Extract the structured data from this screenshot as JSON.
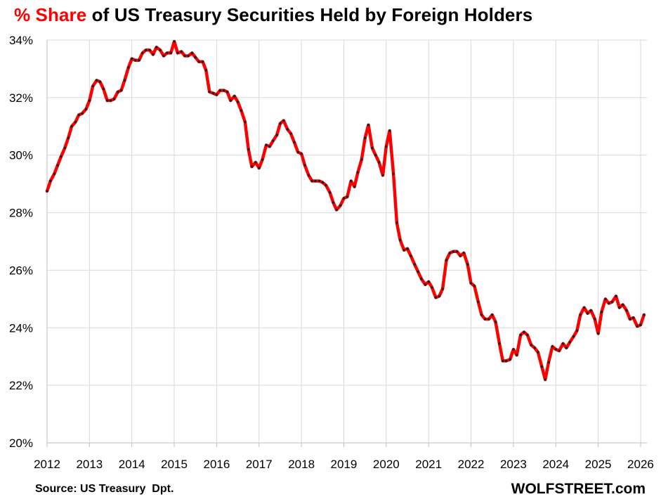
{
  "title": {
    "accent": "% Share",
    "rest": " of US Treasury Securities Held by Foreign Holders"
  },
  "source": "Source: US Treasury  Dpt.",
  "brand": "WOLFSTREET.com",
  "colors": {
    "line": "#ff0000",
    "marker": "#222222",
    "grid": "#d9d9d9",
    "axis": "#bfbfbf"
  },
  "chart_data": {
    "type": "line",
    "title": "% Share of US Treasury Securities Held by Foreign Holders",
    "xlabel": "",
    "ylabel": "",
    "xlim": [
      2012,
      2026.15
    ],
    "ylim": [
      20,
      34
    ],
    "yticks": [
      20,
      22,
      24,
      26,
      28,
      30,
      32,
      34
    ],
    "ytick_labels": [
      "20%",
      "22%",
      "24%",
      "26%",
      "28%",
      "30%",
      "32%",
      "34%"
    ],
    "xticks": [
      2012,
      2013,
      2014,
      2015,
      2016,
      2017,
      2018,
      2019,
      2020,
      2021,
      2022,
      2023,
      2024,
      2025,
      2026
    ],
    "xtick_labels": [
      "2012",
      "2013",
      "2014",
      "2015",
      "2016",
      "2017",
      "2018",
      "2019",
      "2020",
      "2021",
      "2022",
      "2023",
      "2024",
      "2025",
      "2026"
    ],
    "grid": true,
    "legend": "none",
    "series": [
      {
        "values": [
          [
            2012.0,
            28.75
          ],
          [
            2012.08,
            29.1
          ],
          [
            2012.17,
            29.35
          ],
          [
            2012.25,
            29.65
          ],
          [
            2012.33,
            29.95
          ],
          [
            2012.42,
            30.25
          ],
          [
            2012.5,
            30.6
          ],
          [
            2012.58,
            31.0
          ],
          [
            2012.67,
            31.15
          ],
          [
            2012.75,
            31.4
          ],
          [
            2012.83,
            31.45
          ],
          [
            2012.92,
            31.6
          ],
          [
            2013.0,
            31.9
          ],
          [
            2013.08,
            32.4
          ],
          [
            2013.17,
            32.6
          ],
          [
            2013.25,
            32.55
          ],
          [
            2013.33,
            32.3
          ],
          [
            2013.42,
            31.9
          ],
          [
            2013.5,
            31.9
          ],
          [
            2013.58,
            31.95
          ],
          [
            2013.67,
            32.2
          ],
          [
            2013.75,
            32.25
          ],
          [
            2013.83,
            32.6
          ],
          [
            2013.92,
            33.05
          ],
          [
            2014.0,
            33.35
          ],
          [
            2014.08,
            33.3
          ],
          [
            2014.17,
            33.3
          ],
          [
            2014.25,
            33.55
          ],
          [
            2014.33,
            33.65
          ],
          [
            2014.42,
            33.65
          ],
          [
            2014.5,
            33.5
          ],
          [
            2014.58,
            33.75
          ],
          [
            2014.67,
            33.65
          ],
          [
            2014.75,
            33.45
          ],
          [
            2014.83,
            33.55
          ],
          [
            2014.92,
            33.55
          ],
          [
            2015.0,
            33.95
          ],
          [
            2015.08,
            33.55
          ],
          [
            2015.17,
            33.6
          ],
          [
            2015.25,
            33.45
          ],
          [
            2015.33,
            33.45
          ],
          [
            2015.42,
            33.55
          ],
          [
            2015.5,
            33.4
          ],
          [
            2015.58,
            33.25
          ],
          [
            2015.67,
            33.25
          ],
          [
            2015.75,
            32.95
          ],
          [
            2015.83,
            32.2
          ],
          [
            2015.92,
            32.15
          ],
          [
            2016.0,
            32.1
          ],
          [
            2016.08,
            32.25
          ],
          [
            2016.17,
            32.25
          ],
          [
            2016.25,
            32.2
          ],
          [
            2016.33,
            31.9
          ],
          [
            2016.42,
            32.05
          ],
          [
            2016.5,
            31.85
          ],
          [
            2016.58,
            31.55
          ],
          [
            2016.67,
            31.15
          ],
          [
            2016.75,
            30.2
          ],
          [
            2016.83,
            29.6
          ],
          [
            2016.92,
            29.75
          ],
          [
            2017.0,
            29.55
          ],
          [
            2017.08,
            29.85
          ],
          [
            2017.17,
            30.35
          ],
          [
            2017.25,
            30.3
          ],
          [
            2017.33,
            30.5
          ],
          [
            2017.42,
            30.7
          ],
          [
            2017.5,
            31.1
          ],
          [
            2017.58,
            31.2
          ],
          [
            2017.67,
            30.9
          ],
          [
            2017.75,
            30.75
          ],
          [
            2017.83,
            30.45
          ],
          [
            2017.92,
            30.1
          ],
          [
            2018.0,
            30.05
          ],
          [
            2018.08,
            29.65
          ],
          [
            2018.17,
            29.3
          ],
          [
            2018.25,
            29.1
          ],
          [
            2018.33,
            29.1
          ],
          [
            2018.42,
            29.1
          ],
          [
            2018.5,
            29.05
          ],
          [
            2018.58,
            28.95
          ],
          [
            2018.67,
            28.7
          ],
          [
            2018.75,
            28.35
          ],
          [
            2018.83,
            28.1
          ],
          [
            2018.92,
            28.25
          ],
          [
            2019.0,
            28.5
          ],
          [
            2019.08,
            28.55
          ],
          [
            2019.17,
            29.1
          ],
          [
            2019.25,
            28.9
          ],
          [
            2019.33,
            29.4
          ],
          [
            2019.42,
            29.85
          ],
          [
            2019.5,
            30.6
          ],
          [
            2019.58,
            31.05
          ],
          [
            2019.67,
            30.25
          ],
          [
            2019.75,
            30.0
          ],
          [
            2019.83,
            29.75
          ],
          [
            2019.92,
            29.3
          ],
          [
            2020.0,
            30.3
          ],
          [
            2020.08,
            30.85
          ],
          [
            2020.17,
            29.35
          ],
          [
            2020.25,
            27.65
          ],
          [
            2020.33,
            27.05
          ],
          [
            2020.42,
            26.7
          ],
          [
            2020.5,
            26.75
          ],
          [
            2020.58,
            26.5
          ],
          [
            2020.67,
            26.2
          ],
          [
            2020.75,
            25.95
          ],
          [
            2020.83,
            25.7
          ],
          [
            2020.92,
            25.5
          ],
          [
            2021.0,
            25.6
          ],
          [
            2021.08,
            25.4
          ],
          [
            2021.17,
            25.05
          ],
          [
            2021.25,
            25.1
          ],
          [
            2021.33,
            25.35
          ],
          [
            2021.42,
            26.35
          ],
          [
            2021.5,
            26.6
          ],
          [
            2021.58,
            26.65
          ],
          [
            2021.67,
            26.65
          ],
          [
            2021.75,
            26.5
          ],
          [
            2021.83,
            26.6
          ],
          [
            2021.92,
            26.2
          ],
          [
            2022.0,
            25.55
          ],
          [
            2022.08,
            25.45
          ],
          [
            2022.17,
            24.9
          ],
          [
            2022.25,
            24.45
          ],
          [
            2022.33,
            24.3
          ],
          [
            2022.42,
            24.3
          ],
          [
            2022.5,
            24.45
          ],
          [
            2022.58,
            24.2
          ],
          [
            2022.67,
            23.45
          ],
          [
            2022.75,
            22.85
          ],
          [
            2022.83,
            22.85
          ],
          [
            2022.92,
            22.9
          ],
          [
            2023.0,
            23.25
          ],
          [
            2023.08,
            23.05
          ],
          [
            2023.17,
            23.75
          ],
          [
            2023.25,
            23.85
          ],
          [
            2023.33,
            23.75
          ],
          [
            2023.42,
            23.4
          ],
          [
            2023.5,
            23.3
          ],
          [
            2023.58,
            23.15
          ],
          [
            2023.67,
            22.65
          ],
          [
            2023.75,
            22.2
          ],
          [
            2023.83,
            22.8
          ],
          [
            2023.92,
            23.35
          ],
          [
            2024.0,
            23.25
          ],
          [
            2024.08,
            23.2
          ],
          [
            2024.17,
            23.45
          ],
          [
            2024.25,
            23.3
          ],
          [
            2024.33,
            23.5
          ],
          [
            2024.42,
            23.7
          ],
          [
            2024.5,
            23.9
          ],
          [
            2024.58,
            24.45
          ],
          [
            2024.67,
            24.7
          ],
          [
            2024.75,
            24.5
          ],
          [
            2024.83,
            24.6
          ],
          [
            2024.92,
            24.3
          ],
          [
            2025.0,
            23.8
          ],
          [
            2025.08,
            24.55
          ],
          [
            2025.17,
            25.0
          ],
          [
            2025.25,
            24.85
          ],
          [
            2025.33,
            24.9
          ],
          [
            2025.42,
            25.1
          ],
          [
            2025.5,
            24.7
          ],
          [
            2025.58,
            24.8
          ],
          [
            2025.67,
            24.6
          ],
          [
            2025.75,
            24.3
          ],
          [
            2025.83,
            24.35
          ],
          [
            2025.92,
            24.05
          ],
          [
            2026.0,
            24.1
          ],
          [
            2026.08,
            24.45
          ]
        ]
      }
    ]
  }
}
